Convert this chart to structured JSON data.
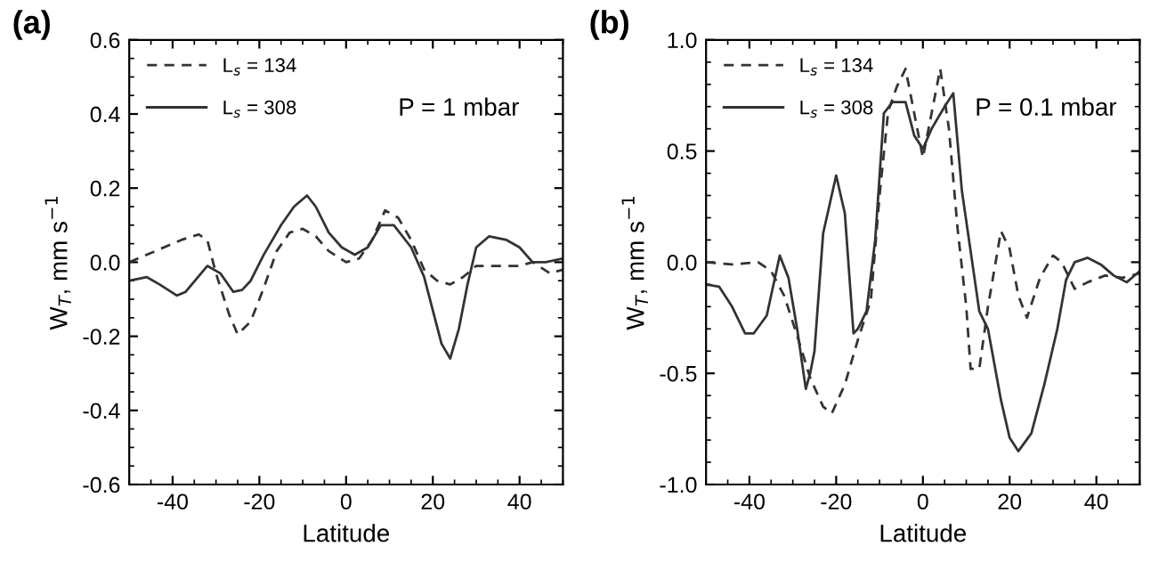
{
  "chart_data": [
    {
      "type": "line",
      "title": "(a)",
      "xlabel": "Latitude",
      "ylabel": "W$_{T}$, mm s$^{−1}$",
      "annotations": [
        "P = 1 mbar"
      ],
      "legend": "top left",
      "grid": false,
      "xlim": [
        -50,
        50
      ],
      "xticks": [
        -40,
        -20,
        0,
        20,
        40
      ],
      "ylim": [
        -0.6,
        0.6
      ],
      "yticks": [
        {
          "value": -0.6,
          "label": "-0.6"
        },
        {
          "value": -0.4,
          "label": "-0.4"
        },
        {
          "value": -0.2,
          "label": "-0.2"
        },
        {
          "value": 0,
          "label": "0.0"
        },
        {
          "value": 0.2,
          "label": "0.2"
        },
        {
          "value": 0.4,
          "label": "0.4"
        },
        {
          "value": 0.6,
          "label": "0.6"
        }
      ],
      "series": [
        {
          "name": "L$_{s}$ = 134",
          "color": "#333333",
          "line_style": "dashed",
          "x": [
            -50,
            -44,
            -38,
            -34,
            -32,
            -30,
            -27,
            -25,
            -22,
            -19,
            -16,
            -13,
            -10,
            -7,
            -4,
            0,
            3,
            6,
            9,
            12,
            15,
            18,
            21,
            24,
            27,
            30,
            33,
            40,
            43,
            47,
            50
          ],
          "values": [
            0.0,
            0.03,
            0.06,
            0.075,
            0.06,
            -0.03,
            -0.14,
            -0.195,
            -0.16,
            -0.07,
            0.03,
            0.08,
            0.09,
            0.07,
            0.03,
            0.0,
            0.01,
            0.06,
            0.14,
            0.12,
            0.06,
            -0.02,
            -0.05,
            -0.06,
            -0.04,
            -0.01,
            -0.01,
            -0.01,
            0.0,
            -0.03,
            -0.02
          ]
        },
        {
          "name": "L$_{s}$ = 308",
          "color": "#333333",
          "line_style": "solid",
          "x": [
            -50,
            -46,
            -43,
            -39,
            -37,
            -32,
            -29,
            -26,
            -24,
            -22,
            -19,
            -15,
            -12,
            -9,
            -7,
            -4,
            -1,
            2,
            5,
            8,
            11,
            15,
            18,
            22,
            24,
            26,
            28,
            30,
            33,
            37,
            40,
            43,
            46,
            50
          ],
          "values": [
            -0.05,
            -0.04,
            -0.06,
            -0.09,
            -0.08,
            -0.01,
            -0.03,
            -0.08,
            -0.075,
            -0.05,
            0.02,
            0.1,
            0.15,
            0.18,
            0.15,
            0.08,
            0.04,
            0.02,
            0.04,
            0.1,
            0.1,
            0.04,
            -0.04,
            -0.22,
            -0.26,
            -0.18,
            -0.06,
            0.04,
            0.07,
            0.06,
            0.04,
            0.0,
            0.0,
            0.01
          ]
        }
      ]
    },
    {
      "type": "line",
      "title": "(b)",
      "xlabel": "Latitude",
      "ylabel": "W$_{T}$, mm s$^{−1}$",
      "annotations": [
        "P = 0.1 mbar"
      ],
      "legend": "top left",
      "grid": false,
      "xlim": [
        -50,
        50
      ],
      "xticks": [
        -40,
        -20,
        0,
        20,
        40
      ],
      "ylim": [
        -1.0,
        1.0
      ],
      "yticks": [
        {
          "value": -1.0,
          "label": "-1.0"
        },
        {
          "value": -0.5,
          "label": "-0.5"
        },
        {
          "value": 0,
          "label": "0.0"
        },
        {
          "value": 0.5,
          "label": "0.5"
        },
        {
          "value": 1.0,
          "label": "1.0"
        }
      ],
      "series": [
        {
          "name": "L$_{s}$ = 134",
          "color": "#333333",
          "line_style": "dashed",
          "x": [
            -50,
            -44,
            -38,
            -35,
            -32,
            -29,
            -26,
            -23,
            -21,
            -18,
            -15,
            -12,
            -10,
            -8,
            -6,
            -4,
            -2,
            0,
            2,
            4,
            6,
            8,
            10,
            11,
            13,
            15,
            18,
            20,
            22,
            24,
            27,
            30,
            32,
            35,
            38,
            42,
            46,
            50
          ],
          "values": [
            0.0,
            -0.01,
            0.0,
            -0.04,
            -0.15,
            -0.33,
            -0.52,
            -0.65,
            -0.68,
            -0.55,
            -0.35,
            -0.17,
            0.3,
            0.68,
            0.79,
            0.87,
            0.67,
            0.47,
            0.67,
            0.87,
            0.6,
            0.15,
            -0.2,
            -0.48,
            -0.48,
            -0.2,
            0.14,
            0.06,
            -0.15,
            -0.25,
            -0.07,
            0.03,
            0.0,
            -0.12,
            -0.09,
            -0.06,
            -0.07,
            -0.05
          ]
        },
        {
          "name": "L$_{s}$ = 308",
          "color": "#333333",
          "line_style": "solid",
          "x": [
            -50,
            -47,
            -44,
            -41,
            -39,
            -36,
            -33,
            -31,
            -29,
            -27,
            -26,
            -25,
            -23,
            -20,
            -18,
            -16,
            -15,
            -13,
            -11,
            -9,
            -7,
            -4,
            -2,
            0,
            2,
            5,
            7,
            9,
            11,
            13,
            15,
            18,
            20,
            22,
            25,
            28,
            31,
            33,
            35,
            38,
            41,
            44,
            47,
            50
          ],
          "values": [
            -0.1,
            -0.11,
            -0.2,
            -0.32,
            -0.32,
            -0.24,
            0.03,
            -0.07,
            -0.3,
            -0.57,
            -0.5,
            -0.4,
            0.13,
            0.39,
            0.22,
            -0.32,
            -0.3,
            -0.22,
            0.1,
            0.67,
            0.72,
            0.72,
            0.57,
            0.51,
            0.6,
            0.7,
            0.76,
            0.32,
            0.05,
            -0.22,
            -0.3,
            -0.62,
            -0.79,
            -0.85,
            -0.77,
            -0.55,
            -0.3,
            -0.08,
            0.0,
            0.02,
            -0.01,
            -0.06,
            -0.09,
            -0.04
          ]
        }
      ]
    }
  ]
}
